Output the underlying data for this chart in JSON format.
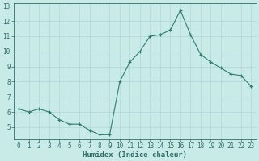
{
  "x": [
    0,
    1,
    2,
    3,
    4,
    5,
    6,
    7,
    8,
    9,
    10,
    11,
    12,
    13,
    14,
    15,
    16,
    17,
    18,
    19,
    20,
    21,
    22,
    23
  ],
  "y": [
    6.2,
    6.0,
    6.2,
    6.0,
    5.5,
    5.2,
    5.2,
    4.8,
    4.5,
    4.5,
    8.0,
    9.3,
    10.0,
    11.0,
    11.1,
    11.4,
    12.7,
    11.1,
    9.8,
    9.3,
    8.9,
    8.5,
    8.4,
    7.7
  ],
  "xlabel": "Humidex (Indice chaleur)",
  "line_color": "#2d7d6e",
  "marker_color": "#2d7d6e",
  "bg_color": "#c8ebe8",
  "grid_color": "#b0d8d4",
  "axis_color": "#2d6e64",
  "text_color": "#2d6e64",
  "ylim": [
    4.2,
    13.2
  ],
  "xlim": [
    -0.5,
    23.5
  ],
  "yticks": [
    5,
    6,
    7,
    8,
    9,
    10,
    11,
    12,
    13
  ],
  "xticks": [
    0,
    1,
    2,
    3,
    4,
    5,
    6,
    7,
    8,
    9,
    10,
    11,
    12,
    13,
    14,
    15,
    16,
    17,
    18,
    19,
    20,
    21,
    22,
    23
  ],
  "tick_fontsize": 5.5,
  "xlabel_fontsize": 6.5
}
